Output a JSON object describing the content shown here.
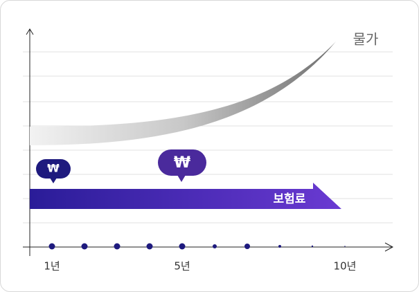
{
  "labels": {
    "price": "물가",
    "premium": "보험료",
    "bubble_small": "₩",
    "bubble_large": "₩"
  },
  "x_labels": [
    "1년",
    "5년",
    "10년"
  ]
}
